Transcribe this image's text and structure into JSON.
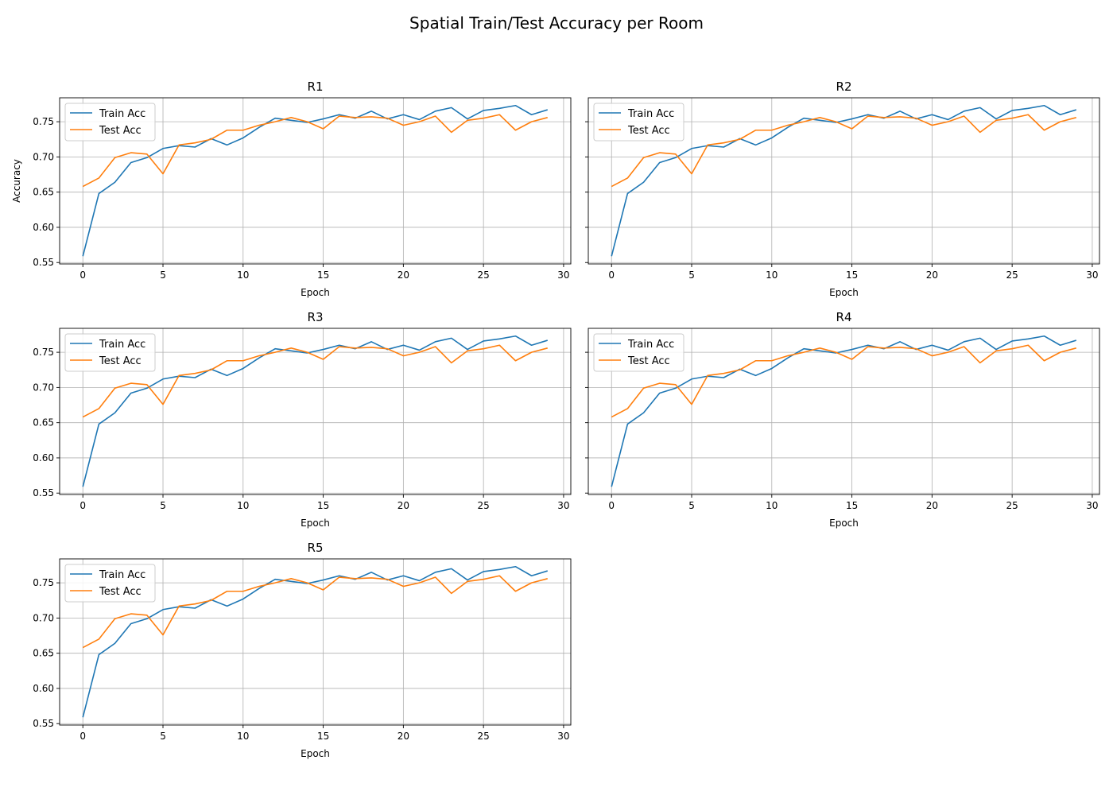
{
  "figure": {
    "title": "Spatial Train/Test Accuracy per Room"
  },
  "chart_data": [
    {
      "type": "line",
      "title": "R1",
      "xlabel": "Epoch",
      "ylabel": "Accuracy",
      "xlim": [
        -1.45,
        30.45
      ],
      "ylim": [
        0.548,
        0.784
      ],
      "xticks": [
        0,
        5,
        10,
        15,
        20,
        25,
        30
      ],
      "yticks": [
        0.55,
        0.6,
        0.65,
        0.7,
        0.75
      ],
      "grid": true,
      "legend": "upper left",
      "x": [
        0,
        1,
        2,
        3,
        4,
        5,
        6,
        7,
        8,
        9,
        10,
        11,
        12,
        13,
        14,
        15,
        16,
        17,
        18,
        19,
        20,
        21,
        22,
        23,
        24,
        25,
        26,
        27,
        28,
        29
      ],
      "series": [
        {
          "name": "Train Acc",
          "color": "#1f77b4",
          "values": [
            0.559,
            0.648,
            0.664,
            0.692,
            0.699,
            0.712,
            0.716,
            0.714,
            0.726,
            0.717,
            0.727,
            0.742,
            0.755,
            0.752,
            0.749,
            0.754,
            0.76,
            0.755,
            0.765,
            0.754,
            0.76,
            0.753,
            0.765,
            0.77,
            0.754,
            0.766,
            0.769,
            0.773,
            0.76,
            0.767
          ]
        },
        {
          "name": "Test Acc",
          "color": "#ff7f0e",
          "values": [
            0.658,
            0.67,
            0.699,
            0.706,
            0.704,
            0.676,
            0.717,
            0.72,
            0.725,
            0.738,
            0.738,
            0.745,
            0.75,
            0.756,
            0.75,
            0.74,
            0.758,
            0.756,
            0.757,
            0.755,
            0.745,
            0.75,
            0.758,
            0.735,
            0.752,
            0.755,
            0.76,
            0.738,
            0.75,
            0.756
          ]
        }
      ]
    },
    {
      "type": "line",
      "title": "R2",
      "xlabel": "Epoch",
      "ylabel": "",
      "xlim": [
        -1.45,
        30.45
      ],
      "ylim": [
        0.548,
        0.784
      ],
      "xticks": [
        0,
        5,
        10,
        15,
        20,
        25,
        30
      ],
      "yticks": [
        0.55,
        0.6,
        0.65,
        0.7,
        0.75
      ],
      "grid": true,
      "legend": "upper left",
      "x": [
        0,
        1,
        2,
        3,
        4,
        5,
        6,
        7,
        8,
        9,
        10,
        11,
        12,
        13,
        14,
        15,
        16,
        17,
        18,
        19,
        20,
        21,
        22,
        23,
        24,
        25,
        26,
        27,
        28,
        29
      ],
      "series": [
        {
          "name": "Train Acc",
          "color": "#1f77b4",
          "values": [
            0.559,
            0.648,
            0.664,
            0.692,
            0.699,
            0.712,
            0.716,
            0.714,
            0.726,
            0.717,
            0.727,
            0.742,
            0.755,
            0.752,
            0.749,
            0.754,
            0.76,
            0.755,
            0.765,
            0.754,
            0.76,
            0.753,
            0.765,
            0.77,
            0.754,
            0.766,
            0.769,
            0.773,
            0.76,
            0.767
          ]
        },
        {
          "name": "Test Acc",
          "color": "#ff7f0e",
          "values": [
            0.658,
            0.67,
            0.699,
            0.706,
            0.704,
            0.676,
            0.717,
            0.72,
            0.725,
            0.738,
            0.738,
            0.745,
            0.75,
            0.756,
            0.75,
            0.74,
            0.758,
            0.756,
            0.757,
            0.755,
            0.745,
            0.75,
            0.758,
            0.735,
            0.752,
            0.755,
            0.76,
            0.738,
            0.75,
            0.756
          ]
        }
      ]
    },
    {
      "type": "line",
      "title": "R3",
      "xlabel": "Epoch",
      "ylabel": "",
      "xlim": [
        -1.45,
        30.45
      ],
      "ylim": [
        0.548,
        0.784
      ],
      "xticks": [
        0,
        5,
        10,
        15,
        20,
        25,
        30
      ],
      "yticks": [
        0.55,
        0.6,
        0.65,
        0.7,
        0.75
      ],
      "grid": true,
      "legend": "upper left",
      "x": [
        0,
        1,
        2,
        3,
        4,
        5,
        6,
        7,
        8,
        9,
        10,
        11,
        12,
        13,
        14,
        15,
        16,
        17,
        18,
        19,
        20,
        21,
        22,
        23,
        24,
        25,
        26,
        27,
        28,
        29
      ],
      "series": [
        {
          "name": "Train Acc",
          "color": "#1f77b4",
          "values": [
            0.559,
            0.648,
            0.664,
            0.692,
            0.699,
            0.712,
            0.716,
            0.714,
            0.726,
            0.717,
            0.727,
            0.742,
            0.755,
            0.752,
            0.749,
            0.754,
            0.76,
            0.755,
            0.765,
            0.754,
            0.76,
            0.753,
            0.765,
            0.77,
            0.754,
            0.766,
            0.769,
            0.773,
            0.76,
            0.767
          ]
        },
        {
          "name": "Test Acc",
          "color": "#ff7f0e",
          "values": [
            0.658,
            0.67,
            0.699,
            0.706,
            0.704,
            0.676,
            0.717,
            0.72,
            0.725,
            0.738,
            0.738,
            0.745,
            0.75,
            0.756,
            0.75,
            0.74,
            0.758,
            0.756,
            0.757,
            0.755,
            0.745,
            0.75,
            0.758,
            0.735,
            0.752,
            0.755,
            0.76,
            0.738,
            0.75,
            0.756
          ]
        }
      ]
    },
    {
      "type": "line",
      "title": "R4",
      "xlabel": "Epoch",
      "ylabel": "",
      "xlim": [
        -1.45,
        30.45
      ],
      "ylim": [
        0.548,
        0.784
      ],
      "xticks": [
        0,
        5,
        10,
        15,
        20,
        25,
        30
      ],
      "yticks": [
        0.55,
        0.6,
        0.65,
        0.7,
        0.75
      ],
      "grid": true,
      "legend": "upper left",
      "x": [
        0,
        1,
        2,
        3,
        4,
        5,
        6,
        7,
        8,
        9,
        10,
        11,
        12,
        13,
        14,
        15,
        16,
        17,
        18,
        19,
        20,
        21,
        22,
        23,
        24,
        25,
        26,
        27,
        28,
        29
      ],
      "series": [
        {
          "name": "Train Acc",
          "color": "#1f77b4",
          "values": [
            0.559,
            0.648,
            0.664,
            0.692,
            0.699,
            0.712,
            0.716,
            0.714,
            0.726,
            0.717,
            0.727,
            0.742,
            0.755,
            0.752,
            0.749,
            0.754,
            0.76,
            0.755,
            0.765,
            0.754,
            0.76,
            0.753,
            0.765,
            0.77,
            0.754,
            0.766,
            0.769,
            0.773,
            0.76,
            0.767
          ]
        },
        {
          "name": "Test Acc",
          "color": "#ff7f0e",
          "values": [
            0.658,
            0.67,
            0.699,
            0.706,
            0.704,
            0.676,
            0.717,
            0.72,
            0.725,
            0.738,
            0.738,
            0.745,
            0.75,
            0.756,
            0.75,
            0.74,
            0.758,
            0.756,
            0.757,
            0.755,
            0.745,
            0.75,
            0.758,
            0.735,
            0.752,
            0.755,
            0.76,
            0.738,
            0.75,
            0.756
          ]
        }
      ]
    },
    {
      "type": "line",
      "title": "R5",
      "xlabel": "Epoch",
      "ylabel": "",
      "xlim": [
        -1.45,
        30.45
      ],
      "ylim": [
        0.548,
        0.784
      ],
      "xticks": [
        0,
        5,
        10,
        15,
        20,
        25,
        30
      ],
      "yticks": [
        0.55,
        0.6,
        0.65,
        0.7,
        0.75
      ],
      "grid": true,
      "legend": "upper left",
      "x": [
        0,
        1,
        2,
        3,
        4,
        5,
        6,
        7,
        8,
        9,
        10,
        11,
        12,
        13,
        14,
        15,
        16,
        17,
        18,
        19,
        20,
        21,
        22,
        23,
        24,
        25,
        26,
        27,
        28,
        29
      ],
      "series": [
        {
          "name": "Train Acc",
          "color": "#1f77b4",
          "values": [
            0.559,
            0.648,
            0.664,
            0.692,
            0.699,
            0.712,
            0.716,
            0.714,
            0.726,
            0.717,
            0.727,
            0.742,
            0.755,
            0.752,
            0.749,
            0.754,
            0.76,
            0.755,
            0.765,
            0.754,
            0.76,
            0.753,
            0.765,
            0.77,
            0.754,
            0.766,
            0.769,
            0.773,
            0.76,
            0.767
          ]
        },
        {
          "name": "Test Acc",
          "color": "#ff7f0e",
          "values": [
            0.658,
            0.67,
            0.699,
            0.706,
            0.704,
            0.676,
            0.717,
            0.72,
            0.725,
            0.738,
            0.738,
            0.745,
            0.75,
            0.756,
            0.75,
            0.74,
            0.758,
            0.756,
            0.757,
            0.755,
            0.745,
            0.75,
            0.758,
            0.735,
            0.752,
            0.755,
            0.76,
            0.738,
            0.75,
            0.756
          ]
        }
      ]
    }
  ]
}
